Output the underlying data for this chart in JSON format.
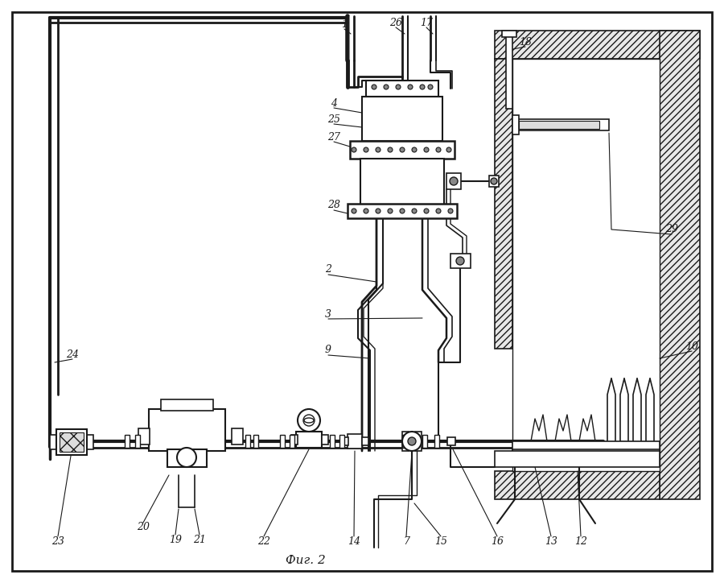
{
  "bg_color": "#ffffff",
  "line_color": "#1a1a1a",
  "figsize": [
    9.0,
    7.24
  ],
  "dpi": 100,
  "title_text": "Фиг. 2"
}
